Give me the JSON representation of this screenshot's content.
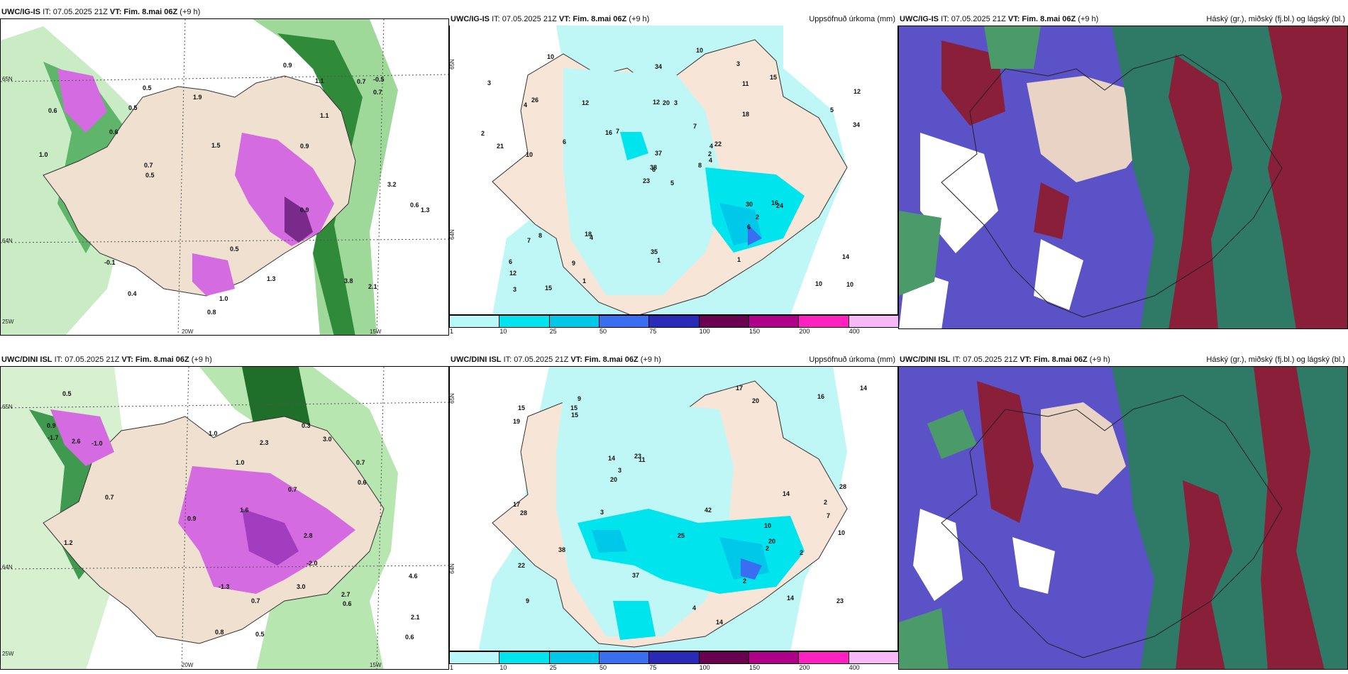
{
  "rows": [
    {
      "panels": [
        {
          "id": "r1p1",
          "model": "UWC/IG-IS",
          "init": "IT: 07.05.2025 21Z",
          "valid": "VT: Fim. 8.mai 06Z",
          "lead": "(+9 h)",
          "product": ""
        },
        {
          "id": "r1p2",
          "model": "UWC/IG-IS",
          "init": "IT: 07.05.2025 21Z",
          "valid": "VT: Fim. 8.mai 06Z",
          "lead": "(+9 h)",
          "product": "Uppsöfnuð úrkoma (mm)"
        },
        {
          "id": "r1p3",
          "model": "UWC/IG-IS",
          "init": "IT: 07.05.2025 21Z",
          "valid": "VT: Fim. 8.mai 06Z",
          "lead": "(+9 h)",
          "product": "Háský (gr.), miðský (fj.bl.) og lágský (bl.)"
        }
      ]
    },
    {
      "panels": [
        {
          "id": "r2p1",
          "model": "UWC/DINI ISL",
          "init": "IT: 07.05.2025 21Z",
          "valid": "VT: Fim. 8.mai 06Z",
          "lead": "(+9 h)",
          "product": ""
        },
        {
          "id": "r2p2",
          "model": "UWC/DINI ISL",
          "init": "IT: 07.05.2025 21Z",
          "valid": "VT: Fim. 8.mai 06Z",
          "lead": "(+9 h)",
          "product": "Uppsöfnuð úrkoma (mm)"
        },
        {
          "id": "r2p3",
          "model": "UWC/DINI ISL",
          "init": "IT: 07.05.2025 21Z",
          "valid": "VT: Fim. 8.mai 06Z",
          "lead": "(+9 h)",
          "product": "Háský (gr.), miðský (fj.bl.) og lágský (bl.)"
        }
      ]
    }
  ],
  "colorbar": {
    "ticks": [
      "1",
      "10",
      "25",
      "50",
      "75",
      "100",
      "150",
      "200",
      "400"
    ],
    "colors": [
      "#b8f8f8",
      "#00e4ee",
      "#00c8e8",
      "#3a6ef0",
      "#2a2ab8",
      "#6a0050",
      "#b0008a",
      "#ff20c0",
      "#f8b8f8"
    ]
  },
  "axes": {
    "lat_labels": [
      "65N",
      "64N"
    ],
    "lon_labels": [
      "20W",
      "15W"
    ],
    "left_lon": "25W"
  },
  "precip_labels_top": [
    "5",
    "4",
    "6",
    "6",
    "4",
    "4",
    "3",
    "3",
    "11",
    "8",
    "10",
    "10",
    "10",
    "12",
    "23",
    "18",
    "15",
    "12",
    "7",
    "8",
    "7",
    "12",
    "9",
    "20",
    "22",
    "24",
    "26",
    "34",
    "21",
    "30",
    "34",
    "38",
    "35",
    "37",
    "12",
    "15",
    "18",
    "10",
    "14",
    "16",
    "10",
    "16",
    "6",
    "6",
    "1",
    "2",
    "2",
    "3",
    "1",
    "4",
    "7",
    "5",
    "3",
    "2",
    "1"
  ],
  "precip_labels_bottom": [
    "10",
    "7",
    "9",
    "9",
    "11",
    "14",
    "22",
    "20",
    "14",
    "14",
    "19",
    "17",
    "15",
    "23",
    "37",
    "28",
    "25",
    "42",
    "23",
    "38",
    "14",
    "16",
    "20",
    "10",
    "17",
    "15",
    "20",
    "28",
    "15",
    "14",
    "4",
    "2",
    "3",
    "3",
    "2",
    "2",
    "2"
  ],
  "temp_labels_top": [
    "0.6",
    "0.5",
    "0.9",
    "1.0",
    "0.7",
    "0.8",
    "0.9",
    "0.5",
    "-0.5",
    "1.3",
    "0.6",
    "0.5",
    "1.1",
    "-0.1",
    "1.0",
    "0.4",
    "0.7",
    "1.9",
    "2.1",
    "1.3",
    "3.8",
    "3.2",
    "1.5",
    "0.5",
    "1.1",
    "0.6",
    "0.7",
    "0.9"
  ],
  "temp_labels_bottom": [
    "1.0",
    "0.6",
    "0.9",
    "0.7",
    "0.8",
    "1.0",
    "0.5",
    "0.3",
    "0.7",
    "1.2",
    "2.7",
    "2.3",
    "2.8",
    "2.6",
    "2.1",
    "3.0",
    "4.6",
    "3.0",
    "0.7",
    "-2.0",
    "-1.7",
    "-1.3",
    "0.7",
    "0.9",
    "0.6",
    "-1.0",
    "0.5",
    "0.6",
    "1.6"
  ]
}
